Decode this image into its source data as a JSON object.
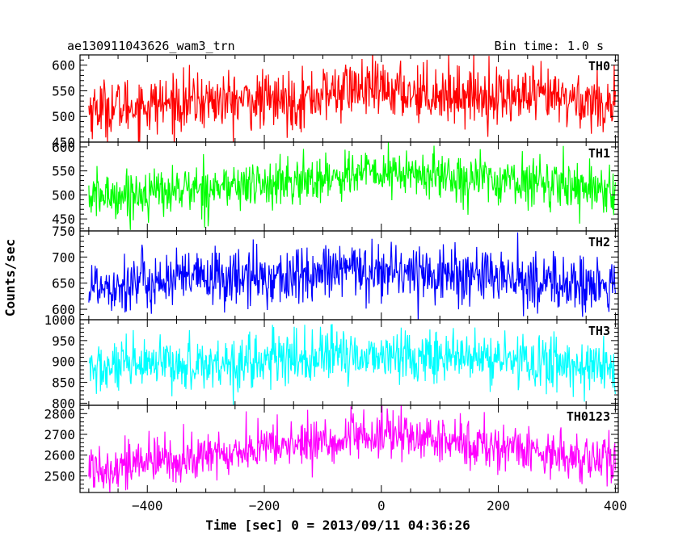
{
  "header": {
    "title": "ae130911043626_wam3_trn",
    "bin_time": "Bin time: 1.0 s"
  },
  "axes": {
    "xlabel": "Time [sec] 0 = 2013/09/11 04:36:26",
    "ylabel": "Counts/sec",
    "xlim": [
      -515,
      405
    ],
    "xticks": [
      -400,
      -200,
      0,
      200,
      400
    ],
    "xtick_labels": [
      "−400",
      "−200",
      "0",
      "200",
      "400"
    ]
  },
  "chart_data": [
    {
      "type": "line",
      "name": "TH0",
      "color": "#ff0000",
      "ylim": [
        450,
        620
      ],
      "yticks": [
        450,
        500,
        550,
        600
      ],
      "x_range": [
        -500,
        400
      ],
      "bin_time_s": 1.0,
      "baseline": [
        [
          -500,
          515
        ],
        [
          -300,
          530
        ],
        [
          -150,
          530
        ],
        [
          -50,
          555
        ],
        [
          0,
          550
        ],
        [
          100,
          545
        ],
        [
          200,
          540
        ],
        [
          300,
          535
        ],
        [
          400,
          525
        ]
      ],
      "noise_amplitude": 28
    },
    {
      "type": "line",
      "name": "TH1",
      "color": "#00ff00",
      "ylim": [
        425,
        610
      ],
      "yticks": [
        450,
        500,
        550,
        600
      ],
      "x_range": [
        -500,
        400
      ],
      "bin_time_s": 1.0,
      "baseline": [
        [
          -500,
          495
        ],
        [
          -300,
          515
        ],
        [
          -150,
          525
        ],
        [
          -50,
          545
        ],
        [
          0,
          545
        ],
        [
          100,
          540
        ],
        [
          200,
          530
        ],
        [
          300,
          525
        ],
        [
          400,
          510
        ]
      ],
      "noise_amplitude": 25
    },
    {
      "type": "line",
      "name": "TH2",
      "color": "#0000ff",
      "ylim": [
        580,
        750
      ],
      "yticks": [
        600,
        650,
        700,
        750
      ],
      "x_range": [
        -500,
        400
      ],
      "bin_time_s": 1.0,
      "baseline": [
        [
          -500,
          645
        ],
        [
          -300,
          660
        ],
        [
          -150,
          660
        ],
        [
          -50,
          675
        ],
        [
          0,
          675
        ],
        [
          100,
          668
        ],
        [
          200,
          660
        ],
        [
          300,
          650
        ],
        [
          400,
          640
        ]
      ],
      "noise_amplitude": 28
    },
    {
      "type": "line",
      "name": "TH3",
      "color": "#00ffff",
      "ylim": [
        795,
        1000
      ],
      "yticks": [
        800,
        850,
        900,
        950,
        1000
      ],
      "x_range": [
        -500,
        400
      ],
      "bin_time_s": 1.0,
      "baseline": [
        [
          -500,
          880
        ],
        [
          -300,
          895
        ],
        [
          -150,
          905
        ],
        [
          -50,
          915
        ],
        [
          0,
          915
        ],
        [
          100,
          910
        ],
        [
          200,
          905
        ],
        [
          300,
          895
        ],
        [
          400,
          885
        ]
      ],
      "noise_amplitude": 32
    },
    {
      "type": "line",
      "name": "TH0123",
      "color": "#ff00ff",
      "ylim": [
        2420,
        2840
      ],
      "yticks": [
        2500,
        2600,
        2700,
        2800
      ],
      "ytick_labels": [
        "2500",
        "2600",
        "2700",
        "2800"
      ],
      "x_range": [
        -500,
        400
      ],
      "bin_time_s": 1.0,
      "baseline": [
        [
          -500,
          2540
        ],
        [
          -300,
          2590
        ],
        [
          -200,
          2640
        ],
        [
          -50,
          2675
        ],
        [
          0,
          2700
        ],
        [
          100,
          2670
        ],
        [
          200,
          2640
        ],
        [
          300,
          2610
        ],
        [
          400,
          2560
        ]
      ],
      "noise_amplitude": 58
    }
  ]
}
